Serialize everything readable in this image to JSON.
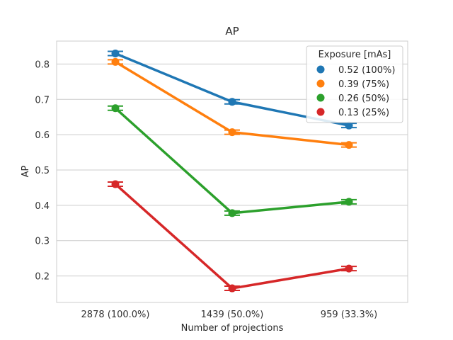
{
  "chart_data": {
    "type": "line",
    "title": "AP",
    "xlabel": "Number of projections",
    "ylabel": "AP",
    "categories": [
      "2878 (100.0%)",
      "1439 (50.0%)",
      "959 (33.3%)"
    ],
    "ylim": [
      0.125,
      0.865
    ],
    "yticks": [
      0.2,
      0.3,
      0.4,
      0.5,
      0.6,
      0.7,
      0.8
    ],
    "grid": "horizontal",
    "legend": {
      "title": "Exposure [mAs]",
      "placement": "top-right"
    },
    "series": [
      {
        "name": "0.52 (100%)",
        "color": "#1f77b4",
        "values": [
          0.83,
          0.693,
          0.626
        ],
        "errors": [
          0.006,
          0.006,
          0.006
        ]
      },
      {
        "name": "0.39 (75%)",
        "color": "#ff7f0e",
        "values": [
          0.806,
          0.607,
          0.571
        ],
        "errors": [
          0.006,
          0.006,
          0.006
        ]
      },
      {
        "name": "0.26 (50%)",
        "color": "#2ca02c",
        "values": [
          0.675,
          0.378,
          0.41
        ],
        "errors": [
          0.006,
          0.006,
          0.006
        ]
      },
      {
        "name": "0.13 (25%)",
        "color": "#d62728",
        "values": [
          0.46,
          0.165,
          0.221
        ],
        "errors": [
          0.006,
          0.006,
          0.006
        ]
      }
    ]
  }
}
